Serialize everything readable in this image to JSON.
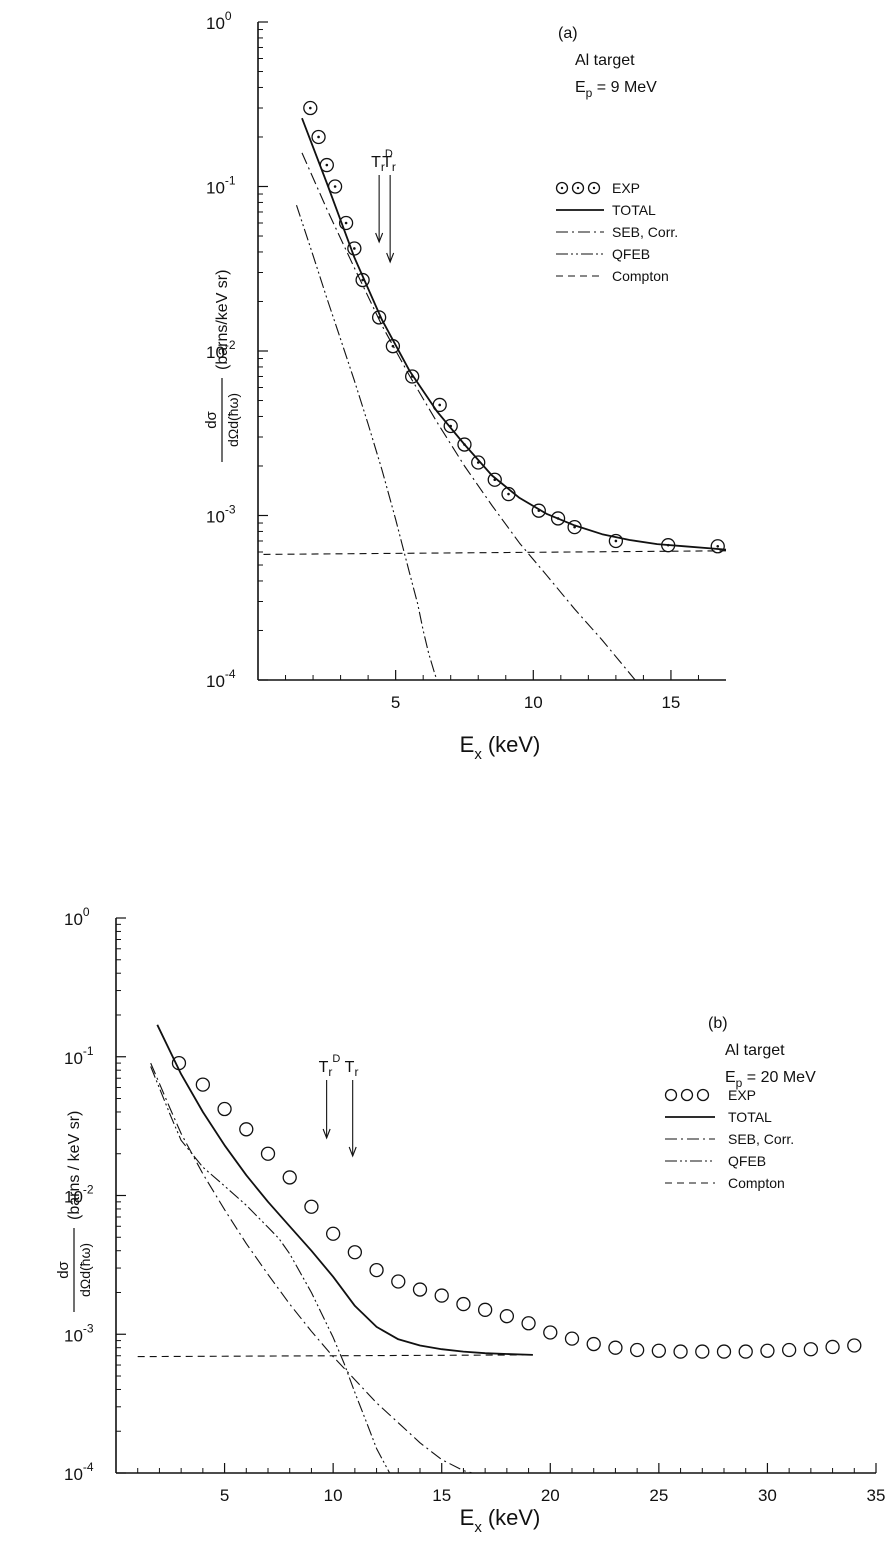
{
  "chart_data": [
    {
      "type": "scatter",
      "panel_label": "(a)",
      "target": "Al target",
      "energy": "E",
      "energy_sub": "p",
      "energy_value": " = 9  MeV",
      "xlabel": "E",
      "xlabel_sub": "x",
      "xlabel_unit": "(keV)",
      "ylabel_num": "dσ",
      "ylabel_den": "dΩd(ħω)",
      "ylabel_unit": "(barns/keV sr)",
      "xlim": [
        0,
        17
      ],
      "ylim": [
        0.0001,
        1
      ],
      "yscale": "log",
      "xticks": [
        5,
        10,
        15
      ],
      "yticks": [
        {
          "value": 1,
          "label": "10",
          "exp": "0"
        },
        {
          "value": 0.1,
          "label": "10",
          "exp": "-1"
        },
        {
          "value": 0.01,
          "label": "10",
          "exp": "-2"
        },
        {
          "value": 0.001,
          "label": "10",
          "exp": "-3"
        },
        {
          "value": 0.0001,
          "label": "10",
          "exp": "-4"
        }
      ],
      "markers": [
        {
          "label": "T",
          "sub": "r",
          "sup": "D",
          "x": 4.4
        },
        {
          "label": "T",
          "sub": "r",
          "sup": "",
          "x": 4.8
        }
      ],
      "legend": [
        {
          "key": "exp",
          "label": "EXP"
        },
        {
          "key": "total",
          "label": "TOTAL"
        },
        {
          "key": "seb",
          "label": "SEB, Corr."
        },
        {
          "key": "qfeb",
          "label": "QFEB"
        },
        {
          "key": "compton",
          "label": "Compton"
        }
      ],
      "series": [
        {
          "key": "exp",
          "name": "EXP",
          "style": "circle-dot",
          "x": [
            1.9,
            2.2,
            2.5,
            2.8,
            3.2,
            3.5,
            3.8,
            4.4,
            4.9,
            5.6,
            6.6,
            7.0,
            7.5,
            8.0,
            8.6,
            9.1,
            10.2,
            10.9,
            11.5,
            13.0,
            14.9,
            16.7
          ],
          "y": [
            0.3,
            0.2,
            0.135,
            0.1,
            0.06,
            0.042,
            0.027,
            0.016,
            0.0107,
            0.007,
            0.0047,
            0.0035,
            0.0027,
            0.0021,
            0.00165,
            0.00135,
            0.00107,
            0.00096,
            0.00085,
            0.0007,
            0.00066,
            0.00065
          ]
        },
        {
          "key": "total",
          "name": "TOTAL",
          "style": "solid",
          "x": [
            1.6,
            2.5,
            3.5,
            4.5,
            5.5,
            6.5,
            7.5,
            8.5,
            9.5,
            10.5,
            11.5,
            12.5,
            13.5,
            14.5,
            15.5,
            16.5,
            17.0
          ],
          "y": [
            0.26,
            0.105,
            0.037,
            0.0155,
            0.0076,
            0.0043,
            0.0027,
            0.00175,
            0.00128,
            0.00102,
            0.00087,
            0.00077,
            0.00071,
            0.00067,
            0.00065,
            0.00063,
            0.00062
          ]
        },
        {
          "key": "seb",
          "name": "SEB, Corr.",
          "style": "dashdot",
          "x": [
            1.6,
            2.5,
            3.5,
            4.5,
            5.5,
            6.5,
            7.5,
            8.5,
            9.5,
            10.5,
            11.5,
            12.5,
            13.7
          ],
          "y": [
            0.16,
            0.073,
            0.032,
            0.0143,
            0.0071,
            0.0037,
            0.002,
            0.00115,
            0.00068,
            0.00043,
            0.00027,
            0.000175,
            0.0001
          ]
        },
        {
          "key": "qfeb",
          "name": "QFEB",
          "style": "dashdotdot",
          "x": [
            1.4,
            2.0,
            2.5,
            3.0,
            3.5,
            4.0,
            4.5,
            5.0,
            5.5,
            5.8,
            6.0,
            6.2,
            6.4,
            6.5
          ],
          "y": [
            0.077,
            0.038,
            0.021,
            0.0118,
            0.0066,
            0.0036,
            0.0019,
            0.00095,
            0.00045,
            0.00029,
            0.0002,
            0.000145,
            0.000112,
            0.0001
          ]
        },
        {
          "key": "compton",
          "name": "Compton",
          "style": "dashed",
          "x": [
            0.2,
            17.0
          ],
          "y": [
            0.00058,
            0.00061
          ]
        }
      ]
    },
    {
      "type": "scatter",
      "panel_label": "(b)",
      "target": "Al  target",
      "energy": "E",
      "energy_sub": "p",
      "energy_value": " = 20 MeV",
      "xlabel": "E",
      "xlabel_sub": "x",
      "xlabel_unit": "(keV)",
      "ylabel_num": "dσ",
      "ylabel_den": "dΩd(ħω)",
      "ylabel_unit": "(barns / keV sr)",
      "xlim": [
        0,
        35
      ],
      "ylim": [
        0.0001,
        1
      ],
      "yscale": "log",
      "xticks": [
        5,
        10,
        15,
        20,
        25,
        30,
        35
      ],
      "yticks": [
        {
          "value": 1,
          "label": "10",
          "exp": "0"
        },
        {
          "value": 0.1,
          "label": "10",
          "exp": "-1"
        },
        {
          "value": 0.01,
          "label": "10",
          "exp": "-2"
        },
        {
          "value": 0.001,
          "label": "10",
          "exp": "-3"
        },
        {
          "value": 0.0001,
          "label": "10",
          "exp": "-4"
        }
      ],
      "markers": [
        {
          "label": "T",
          "sub": "r",
          "sup": "D",
          "x": 9.7
        },
        {
          "label": "T",
          "sub": "r",
          "sup": "",
          "x": 10.9
        }
      ],
      "legend": [
        {
          "key": "exp",
          "label": "EXP"
        },
        {
          "key": "total",
          "label": "TOTAL"
        },
        {
          "key": "seb",
          "label": "SEB, Corr."
        },
        {
          "key": "qfeb",
          "label": "QFEB"
        },
        {
          "key": "compton",
          "label": "Compton"
        }
      ],
      "series": [
        {
          "key": "exp",
          "name": "EXP",
          "style": "circle",
          "x": [
            2.9,
            4.0,
            5.0,
            6.0,
            7.0,
            8.0,
            9.0,
            10.0,
            11.0,
            12.0,
            13.0,
            14.0,
            15.0,
            16.0,
            17.0,
            18.0,
            19.0,
            20.0,
            21.0,
            22.0,
            23.0,
            24.0,
            25.0,
            26.0,
            27.0,
            28.0,
            29.0,
            30.0,
            31.0,
            32.0,
            33.0,
            34.0
          ],
          "y": [
            0.09,
            0.063,
            0.042,
            0.03,
            0.02,
            0.0135,
            0.0083,
            0.0053,
            0.0039,
            0.0029,
            0.0024,
            0.0021,
            0.0019,
            0.00165,
            0.0015,
            0.00135,
            0.0012,
            0.00103,
            0.00093,
            0.00085,
            0.0008,
            0.00077,
            0.00076,
            0.00075,
            0.00075,
            0.00075,
            0.00075,
            0.00076,
            0.00077,
            0.00078,
            0.00081,
            0.00083
          ]
        },
        {
          "key": "total",
          "name": "TOTAL",
          "style": "solid",
          "x": [
            1.9,
            3.0,
            4.0,
            5.0,
            6.0,
            7.0,
            8.0,
            9.0,
            10.0,
            11.0,
            12.0,
            13.0,
            14.0,
            15.0,
            16.0,
            17.0,
            18.0,
            19.2
          ],
          "y": [
            0.17,
            0.075,
            0.04,
            0.023,
            0.014,
            0.009,
            0.006,
            0.004,
            0.0026,
            0.0016,
            0.00113,
            0.00092,
            0.00083,
            0.00078,
            0.00075,
            0.00073,
            0.00072,
            0.00071
          ]
        },
        {
          "key": "seb",
          "name": "SEB, Corr.",
          "style": "dashdot",
          "x": [
            1.6,
            2.5,
            3.0,
            4.0,
            5.0,
            6.0,
            7.0,
            8.0,
            9.0,
            10.0,
            11.0,
            12.0,
            13.0,
            14.0,
            15.0,
            16.0,
            16.4
          ],
          "y": [
            0.09,
            0.042,
            0.028,
            0.0143,
            0.0079,
            0.0045,
            0.0027,
            0.00165,
            0.00105,
            0.00069,
            0.00047,
            0.00032,
            0.00023,
            0.000165,
            0.000125,
            0.000104,
            0.0001
          ]
        },
        {
          "key": "qfeb",
          "name": "QFEB",
          "style": "dashdotdot",
          "x": [
            1.6,
            2.5,
            3.0,
            4.0,
            5.0,
            6.0,
            7.0,
            7.5,
            8.0,
            9.0,
            10.0,
            10.5,
            11.0,
            11.5,
            12.0,
            12.6
          ],
          "y": [
            0.085,
            0.038,
            0.025,
            0.016,
            0.0117,
            0.0085,
            0.0059,
            0.0049,
            0.0038,
            0.002,
            0.00095,
            0.00062,
            0.00038,
            0.00024,
            0.00015,
            0.0001
          ]
        },
        {
          "key": "compton",
          "name": "Compton",
          "style": "dashed",
          "x": [
            1.0,
            19.2
          ],
          "y": [
            0.00069,
            0.00071
          ]
        }
      ]
    }
  ]
}
